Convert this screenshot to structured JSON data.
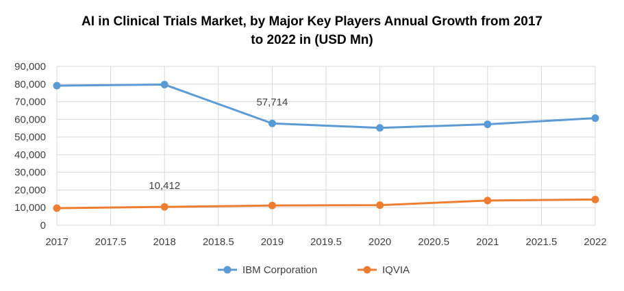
{
  "chart_data": {
    "type": "line",
    "title_line1": "AI in Clinical Trials Market, by Major Key Players Annual Growth from 2017",
    "title_line2": "to 2022 in (USD Mn)",
    "x": [
      2017,
      2018,
      2019,
      2020,
      2021,
      2022
    ],
    "xlim": [
      2017,
      2022
    ],
    "x_ticks": [
      "2017",
      "2017.5",
      "2018",
      "2018.5",
      "2019",
      "2019.5",
      "2020",
      "2020.5",
      "2021",
      "2021.5",
      "2022"
    ],
    "ylim": [
      0,
      90000
    ],
    "y_ticks": [
      "0",
      "10,000",
      "20,000",
      "30,000",
      "40,000",
      "50,000",
      "60,000",
      "70,000",
      "80,000",
      "90,000"
    ],
    "grid": true,
    "legend_position": "bottom",
    "series": [
      {
        "name": "IBM Corporation",
        "color": "#5B9BD5",
        "values": [
          79100,
          79700,
          57714,
          55200,
          57200,
          60700
        ]
      },
      {
        "name": "IQVIA",
        "color": "#ED7D31",
        "values": [
          9700,
          10412,
          11200,
          11400,
          14000,
          14600
        ]
      }
    ],
    "annotations": [
      {
        "series": 0,
        "x": 2019,
        "text": "57,714"
      },
      {
        "series": 1,
        "x": 2018,
        "text": "10,412"
      }
    ]
  }
}
